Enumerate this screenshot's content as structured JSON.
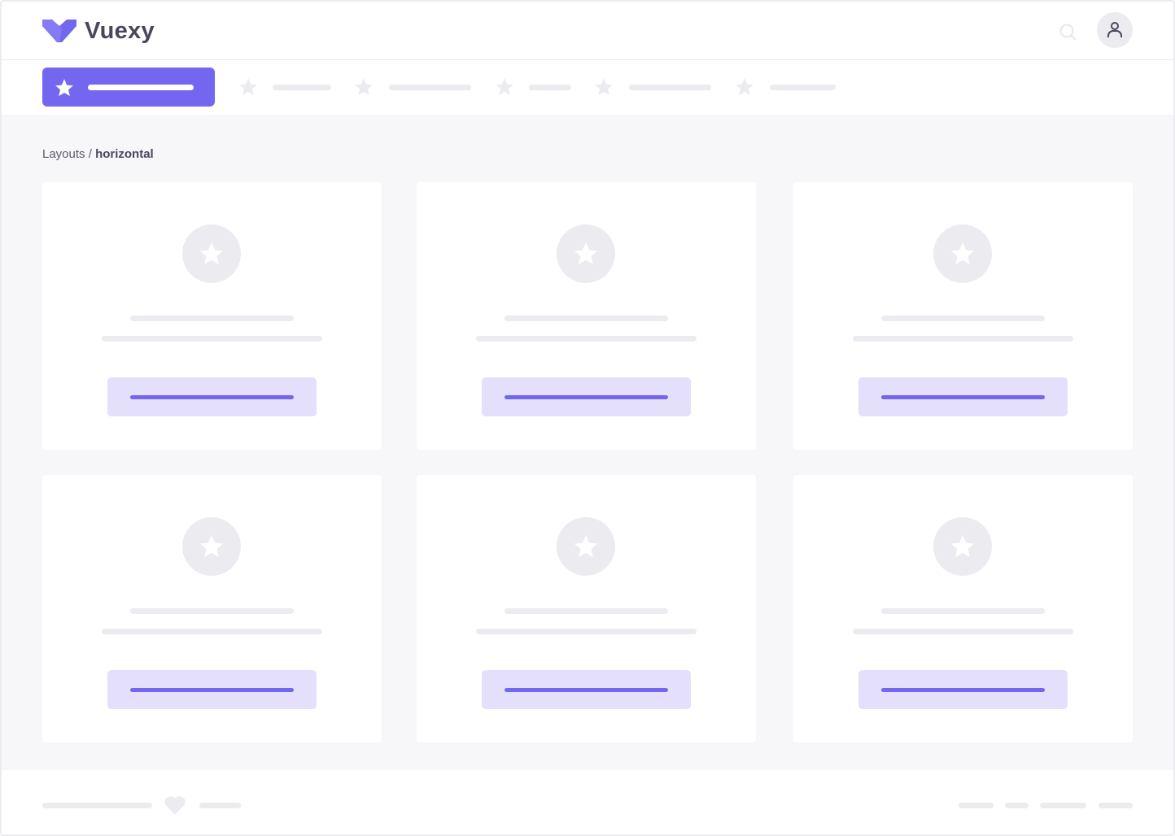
{
  "header": {
    "brand": "Vuexy",
    "logo_icon": "vuexy-logo",
    "search_icon": "search-icon",
    "avatar_icon": "user-icon"
  },
  "nav": {
    "items": [
      {
        "active": true,
        "icon": "star-icon"
      },
      {
        "icon": "star-icon"
      },
      {
        "icon": "star-icon"
      },
      {
        "icon": "star-icon"
      },
      {
        "icon": "star-icon"
      },
      {
        "icon": "star-icon"
      }
    ]
  },
  "breadcrumb": {
    "parent": "Layouts",
    "separator": " / ",
    "current": "horizontal"
  },
  "cards": [
    {
      "icon": "star-icon"
    },
    {
      "icon": "star-icon"
    },
    {
      "icon": "star-icon"
    },
    {
      "icon": "star-icon"
    },
    {
      "icon": "star-icon"
    },
    {
      "icon": "star-icon"
    }
  ],
  "footer": {
    "icon": "heart-icon"
  },
  "colors": {
    "primary": "#7367f0",
    "primary_light": "#e4e0fb",
    "placeholder": "#ececf0",
    "background": "#f7f7f9",
    "text": "#4b465c"
  }
}
